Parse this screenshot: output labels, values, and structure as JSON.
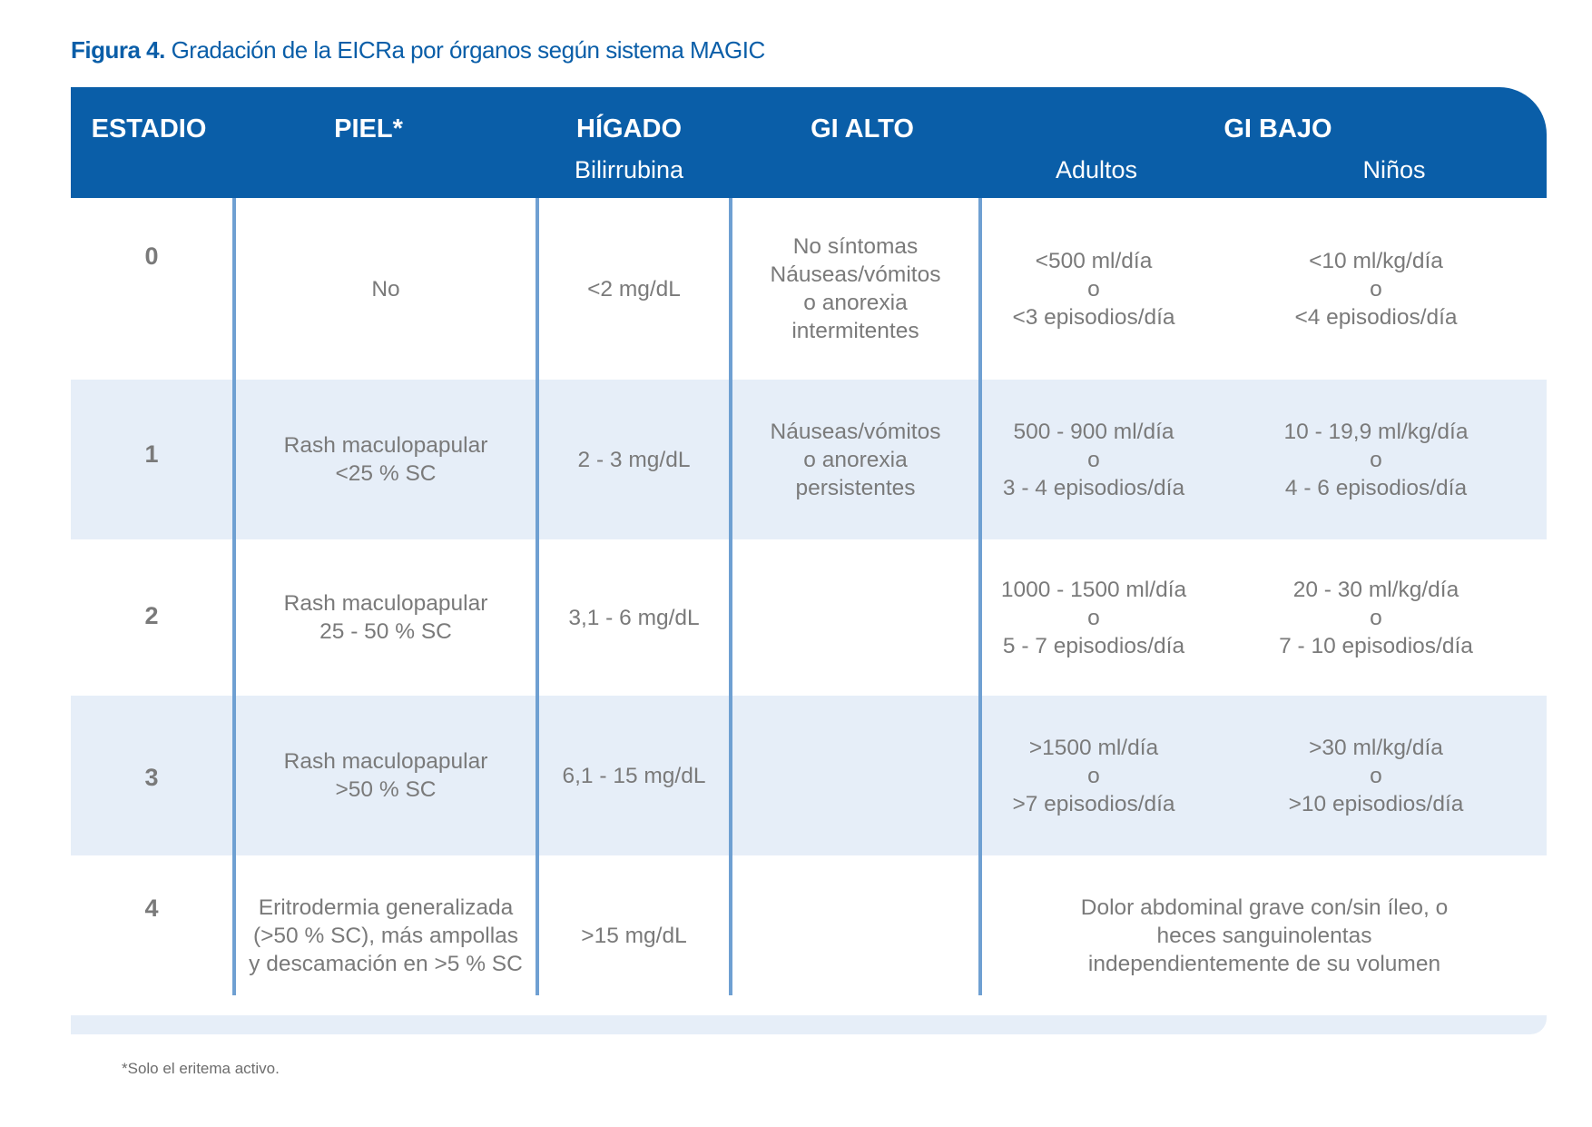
{
  "caption": {
    "label": "Figura 4.",
    "text": " Gradación de la EICRa por órganos según sistema MAGIC"
  },
  "header": {
    "estadio": "ESTADIO",
    "piel": "PIEL*",
    "higado": "HÍGADO",
    "higado_sub": "Bilirrubina",
    "gi_alto": "GI ALTO",
    "gi_bajo": "GI BAJO",
    "gi_bajo_adultos": "Adultos",
    "gi_bajo_ninos": "Niños"
  },
  "rows": [
    {
      "stage": "0",
      "piel": [
        "No"
      ],
      "higado": [
        "<2 mg/dL"
      ],
      "gi_alto": [
        "No síntomas",
        "Náuseas/vómitos",
        "o anorexia",
        "intermitentes"
      ],
      "adultos": [
        "<500 ml/día",
        "o",
        "<3 episodios/día"
      ],
      "ninos": [
        "<10 ml/kg/día",
        "o",
        "<4 episodios/día"
      ]
    },
    {
      "stage": "1",
      "piel": [
        "Rash maculopapular",
        "<25 % SC"
      ],
      "higado": [
        "2 - 3 mg/dL"
      ],
      "gi_alto": [
        "Náuseas/vómitos",
        "o anorexia",
        "persistentes"
      ],
      "adultos": [
        "500 - 900 ml/día",
        "o",
        "3 - 4 episodios/día"
      ],
      "ninos": [
        "10 - 19,9 ml/kg/día",
        "o",
        "4 - 6 episodios/día"
      ]
    },
    {
      "stage": "2",
      "piel": [
        "Rash maculopapular",
        "25 - 50 % SC"
      ],
      "higado": [
        "3,1 - 6 mg/dL"
      ],
      "adultos": [
        "1000 - 1500 ml/día",
        "o",
        "5 - 7 episodios/día"
      ],
      "ninos": [
        "20 - 30 ml/kg/día",
        "o",
        "7 - 10 episodios/día"
      ]
    },
    {
      "stage": "3",
      "piel": [
        "Rash maculopapular",
        ">50 % SC"
      ],
      "higado": [
        "6,1 - 15 mg/dL"
      ],
      "adultos": [
        ">1500 ml/día",
        "o",
        ">7 episodios/día"
      ],
      "ninos": [
        ">30 ml/kg/día",
        "o",
        ">10 episodios/día"
      ]
    },
    {
      "stage": "4",
      "piel": [
        "Eritrodermia generalizada",
        "(>50 % SC), más ampollas",
        "y descamación en >5 % SC"
      ],
      "higado": [
        ">15 mg/dL"
      ],
      "gi_bajo": [
        "Dolor abdominal grave con/sin íleo, o",
        "heces sanguinolentas",
        "independientemente de su volumen"
      ]
    }
  ],
  "footnote": "*Solo el eritema activo.",
  "colors": {
    "accent": "#0a5ea8",
    "band": "#e6eef8",
    "divider": "#6fa0d2",
    "text": "#7a7a7a"
  }
}
